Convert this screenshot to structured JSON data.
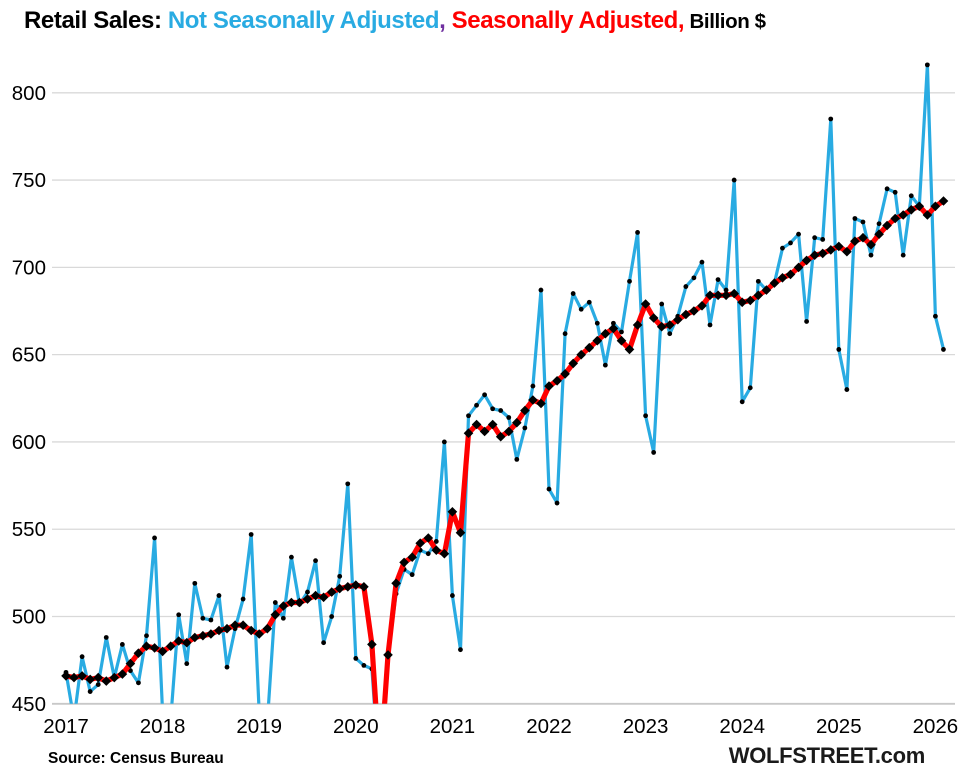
{
  "title": {
    "prefix": "Retail Sales: ",
    "nsa_label": "Not Seasonally Adjusted",
    "separator": ", ",
    "sa_label": "Seasonally Adjusted,",
    "suffix": " Billion $"
  },
  "footer": {
    "source": "Source: Census Bureau",
    "brand": "WOLFSTREET.com"
  },
  "colors": {
    "nsa_line": "#29ABE2",
    "sa_line": "#FF0000",
    "separator_comma": "#7030A0",
    "marker": "#000000",
    "gridline": "#D9D9D9",
    "baseline": "#C8C8C8",
    "axis_text": "#000000"
  },
  "chart_data": {
    "type": "line",
    "title": "Retail Sales: Not Seasonally Adjusted, Seasonally Adjusted, Billion $",
    "xlabel": "",
    "ylabel": "Billion $",
    "x_monthly_from": "2017-01",
    "x_monthly_to": "2026-02",
    "x_tick_labels": [
      "2017",
      "2018",
      "2019",
      "2020",
      "2021",
      "2022",
      "2023",
      "2024",
      "2025",
      "2026"
    ],
    "yticks": [
      450,
      500,
      550,
      600,
      650,
      700,
      750,
      800
    ],
    "ylim": [
      450,
      825
    ],
    "grid": "horizontal-only",
    "legend_position": "in-title",
    "clip_note": "values below 450 are clipped at the bottom axis line",
    "series": [
      {
        "name": "Not Seasonally Adjusted",
        "color": "#29ABE2",
        "marker": "dot",
        "values": [
          468,
          441,
          477,
          457,
          461,
          488,
          465,
          484,
          469,
          462,
          489,
          545,
          445,
          441,
          501,
          473,
          519,
          499,
          498,
          512,
          471,
          493,
          510,
          547,
          445,
          439,
          508,
          499,
          534,
          507,
          514,
          532,
          485,
          500,
          523,
          576,
          476,
          472,
          470,
          403,
          477,
          513,
          527,
          524,
          538,
          536,
          543,
          600,
          512,
          481,
          615,
          621,
          627,
          619,
          618,
          614,
          590,
          608,
          632,
          687,
          573,
          565,
          662,
          685,
          676,
          680,
          668,
          644,
          668,
          663,
          692,
          720,
          615,
          594,
          679,
          662,
          672,
          689,
          694,
          703,
          667,
          693,
          687,
          750,
          623,
          631,
          692,
          687,
          691,
          711,
          714,
          719,
          669,
          717,
          716,
          785,
          653,
          630,
          728,
          726,
          707,
          725,
          745,
          743,
          707,
          741,
          735,
          816,
          672,
          653
        ]
      },
      {
        "name": "Seasonally Adjusted",
        "color": "#FF0000",
        "marker": "diamond",
        "values": [
          466,
          465,
          466,
          464,
          465,
          463,
          465,
          467,
          473,
          479,
          483,
          482,
          480,
          483,
          486,
          485,
          488,
          489,
          490,
          492,
          493,
          495,
          495,
          492,
          490,
          493,
          501,
          506,
          508,
          508,
          510,
          512,
          511,
          514,
          516,
          517,
          518,
          517,
          484,
          412,
          478,
          519,
          531,
          534,
          542,
          545,
          538,
          536,
          560,
          548,
          605,
          610,
          606,
          610,
          603,
          606,
          611,
          618,
          624,
          622,
          632,
          635,
          639,
          645,
          650,
          654,
          658,
          662,
          665,
          658,
          653,
          667,
          679,
          671,
          666,
          667,
          670,
          673,
          675,
          678,
          684,
          684,
          684,
          685,
          680,
          681,
          684,
          687,
          691,
          694,
          696,
          700,
          704,
          707,
          708,
          710,
          712,
          709,
          715,
          717,
          713,
          719,
          724,
          728,
          730,
          733,
          735,
          730,
          735,
          738
        ]
      }
    ]
  }
}
